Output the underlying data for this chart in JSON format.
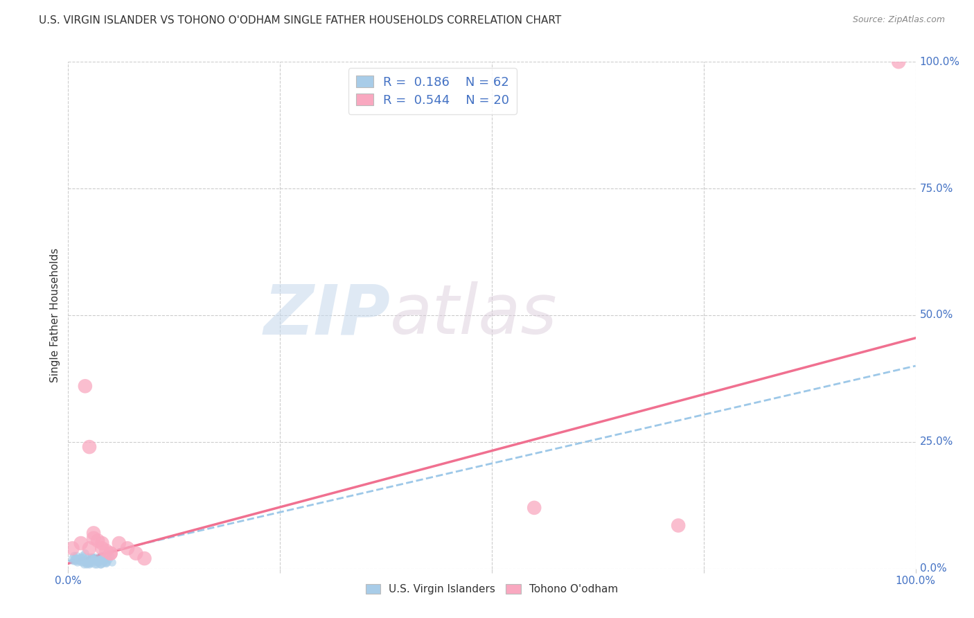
{
  "title": "U.S. VIRGIN ISLANDER VS TOHONO O'ODHAM SINGLE FATHER HOUSEHOLDS CORRELATION CHART",
  "source": "Source: ZipAtlas.com",
  "ylabel": "Single Father Households",
  "xlim": [
    0.0,
    1.0
  ],
  "ylim": [
    0.0,
    1.0
  ],
  "xtick_labels": [
    "0.0%",
    "100.0%"
  ],
  "xtick_vals": [
    0.0,
    1.0
  ],
  "xtick_minor_vals": [
    0.25,
    0.5,
    0.75
  ],
  "ytick_vals": [
    0.0,
    0.25,
    0.5,
    0.75,
    1.0
  ],
  "ytick_labels": [
    "0.0%",
    "25.0%",
    "50.0%",
    "75.0%",
    "100.0%"
  ],
  "blue_color": "#a8cce8",
  "pink_color": "#f9a8c0",
  "blue_line_color": "#9dc8e8",
  "pink_line_color": "#f07090",
  "watermark_zip": "ZIP",
  "watermark_atlas": "atlas",
  "legend_label1": "U.S. Virgin Islanders",
  "legend_label2": "Tohono O'odham",
  "blue_scatter_x": [
    0.005,
    0.008,
    0.01,
    0.012,
    0.015,
    0.018,
    0.02,
    0.022,
    0.025,
    0.028,
    0.03,
    0.032,
    0.035,
    0.038,
    0.04,
    0.042,
    0.045,
    0.048,
    0.05,
    0.052,
    0.006,
    0.009,
    0.013,
    0.017,
    0.021,
    0.025,
    0.029,
    0.033,
    0.037,
    0.041,
    0.007,
    0.011,
    0.015,
    0.019,
    0.023,
    0.027,
    0.031,
    0.035,
    0.039,
    0.043,
    0.008,
    0.012,
    0.016,
    0.02,
    0.024,
    0.028,
    0.032,
    0.036,
    0.04,
    0.044,
    0.01,
    0.014,
    0.018,
    0.022,
    0.026,
    0.03,
    0.034,
    0.038,
    0.042,
    0.046,
    0.009,
    0.013
  ],
  "blue_scatter_y": [
    0.02,
    0.015,
    0.025,
    0.018,
    0.022,
    0.012,
    0.03,
    0.008,
    0.01,
    0.015,
    0.018,
    0.022,
    0.012,
    0.008,
    0.02,
    0.015,
    0.01,
    0.018,
    0.025,
    0.012,
    0.015,
    0.02,
    0.018,
    0.025,
    0.012,
    0.008,
    0.022,
    0.015,
    0.018,
    0.01,
    0.025,
    0.012,
    0.02,
    0.008,
    0.015,
    0.022,
    0.018,
    0.012,
    0.008,
    0.015,
    0.02,
    0.015,
    0.012,
    0.018,
    0.022,
    0.01,
    0.008,
    0.015,
    0.02,
    0.012,
    0.018,
    0.015,
    0.022,
    0.01,
    0.012,
    0.018,
    0.008,
    0.015,
    0.02,
    0.012,
    0.015,
    0.018
  ],
  "pink_scatter_x": [
    0.005,
    0.015,
    0.025,
    0.03,
    0.04,
    0.05,
    0.06,
    0.07,
    0.08,
    0.09,
    0.55,
    0.72,
    0.98,
    0.02,
    0.025,
    0.03,
    0.035,
    0.04,
    0.045,
    0.05
  ],
  "pink_scatter_y": [
    0.04,
    0.05,
    0.04,
    0.06,
    0.05,
    0.03,
    0.05,
    0.04,
    0.03,
    0.02,
    0.12,
    0.085,
    1.0,
    0.36,
    0.24,
    0.07,
    0.055,
    0.04,
    0.035,
    0.03
  ],
  "blue_trendline_x": [
    0.0,
    1.0
  ],
  "blue_trendline_y": [
    0.015,
    0.4
  ],
  "pink_trendline_x": [
    0.0,
    1.0
  ],
  "pink_trendline_y": [
    0.01,
    0.455
  ],
  "background_color": "#ffffff",
  "grid_color": "#cccccc",
  "title_color": "#333333",
  "axis_label_color": "#333333",
  "tick_color": "#4472c4",
  "title_fontsize": 11,
  "source_fontsize": 9
}
